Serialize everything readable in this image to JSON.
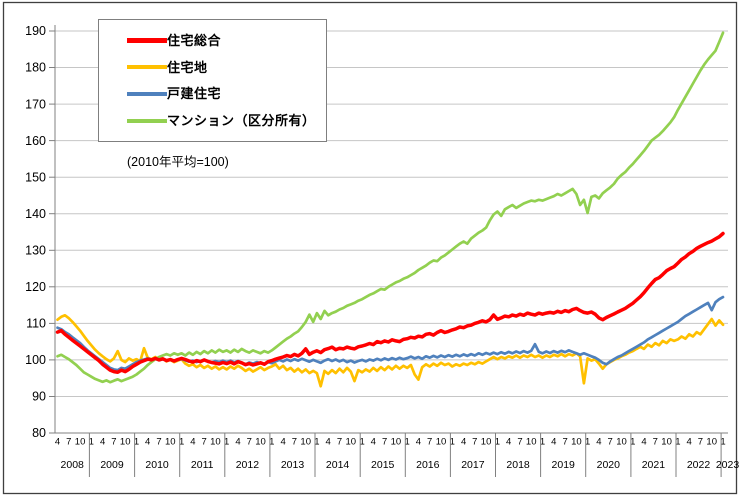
{
  "chart": {
    "note": "(2010年平均=100)",
    "border_color": "#3f3f3f",
    "grid_color": "#c6c6c6",
    "axis_color": "#808080",
    "y_axis": {
      "min": 80,
      "max": 190,
      "tick_step": 10,
      "ticks": [
        80,
        90,
        100,
        110,
        120,
        130,
        140,
        150,
        160,
        170,
        180,
        190
      ]
    },
    "x_axis": {
      "start_year": 2008,
      "start_month": 4,
      "labeled_months": [
        1,
        4,
        7,
        10
      ],
      "years": [
        "2008",
        "2009",
        "2010",
        "2011",
        "2012",
        "2013",
        "2014",
        "2015",
        "2016",
        "2017",
        "2018",
        "2019",
        "2020",
        "2021",
        "2022",
        "2023"
      ]
    }
  },
  "chart_data": {
    "type": "line",
    "title": "",
    "x_start": "2008-04",
    "x_end": "2023-01",
    "frequency": "monthly",
    "ylim": [
      80,
      190
    ],
    "grid": true,
    "legend_position": "top-left",
    "series": [
      {
        "name": "住宅総合",
        "color": "#ff0000",
        "width": 3.5,
        "values": [
          107.6,
          108.0,
          107.0,
          106.2,
          105.4,
          104.6,
          103.8,
          103.0,
          102.2,
          101.4,
          100.6,
          99.8,
          98.8,
          98.0,
          97.2,
          96.8,
          96.6,
          97.2,
          96.8,
          97.4,
          98.2,
          98.8,
          99.4,
          99.8,
          100.2,
          100.0,
          100.4,
          100.0,
          100.3,
          99.8,
          100.1,
          99.7,
          100.1,
          100.4,
          100.1,
          99.7,
          99.4,
          99.8,
          99.5,
          100.0,
          99.6,
          99.3,
          99.1,
          98.9,
          99.3,
          99.0,
          99.4,
          98.9,
          99.5,
          99.2,
          98.7,
          99.0,
          98.6,
          98.9,
          99.2,
          98.8,
          99.5,
          99.8,
          100.2,
          100.5,
          100.8,
          101.2,
          100.9,
          101.5,
          101.1,
          101.8,
          103.0,
          101.5,
          102.1,
          102.5,
          102.0,
          102.8,
          103.1,
          103.5,
          102.8,
          103.2,
          103.0,
          103.5,
          103.2,
          103.0,
          103.6,
          103.8,
          104.1,
          104.5,
          104.2,
          105.0,
          104.7,
          105.2,
          104.9,
          105.5,
          105.2,
          105.0,
          105.6,
          105.8,
          106.2,
          106.0,
          106.5,
          106.3,
          107.0,
          107.2,
          106.8,
          107.5,
          108.0,
          107.5,
          107.8,
          108.2,
          108.5,
          109.0,
          108.8,
          109.3,
          109.5,
          110.0,
          110.3,
          110.7,
          110.4,
          111.0,
          112.3,
          111.1,
          111.5,
          112.0,
          111.8,
          112.3,
          112.0,
          112.5,
          112.2,
          112.8,
          112.5,
          112.3,
          112.8,
          112.5,
          112.8,
          113.0,
          112.8,
          113.3,
          113.0,
          113.5,
          113.2,
          113.8,
          114.1,
          113.5,
          113.0,
          112.8,
          113.1,
          112.5,
          111.5,
          111.0,
          111.6,
          112.1,
          112.6,
          113.1,
          113.6,
          114.1,
          114.8,
          115.5,
          116.4,
          117.3,
          118.4,
          119.7,
          120.9,
          122.0,
          122.5,
          123.4,
          124.4,
          125.0,
          125.5,
          126.5,
          127.5,
          128.2,
          129.1,
          129.7,
          130.5,
          131.1,
          131.6,
          132.1,
          132.5,
          133.1,
          133.7,
          134.6
        ]
      },
      {
        "name": "住宅地",
        "color": "#ffc000",
        "width": 2.7,
        "values": [
          111.0,
          111.8,
          112.2,
          111.4,
          110.4,
          109.2,
          108.0,
          106.6,
          105.2,
          104.0,
          102.8,
          101.8,
          101.0,
          100.2,
          99.6,
          100.4,
          102.4,
          100.0,
          99.4,
          100.4,
          99.8,
          100.2,
          99.6,
          103.2,
          100.6,
          100.2,
          100.8,
          100.0,
          100.4,
          99.6,
          100.0,
          99.4,
          99.8,
          100.2,
          99.0,
          98.4,
          98.8,
          98.0,
          98.6,
          97.8,
          98.4,
          97.6,
          98.2,
          97.4,
          98.0,
          97.4,
          98.2,
          97.6,
          98.4,
          97.8,
          97.0,
          97.6,
          96.8,
          97.4,
          98.0,
          97.2,
          97.8,
          98.2,
          98.8,
          97.6,
          98.4,
          97.2,
          97.8,
          96.8,
          97.6,
          96.6,
          97.4,
          96.4,
          97.0,
          96.4,
          92.8,
          97.0,
          96.2,
          97.2,
          96.4,
          97.6,
          96.6,
          97.8,
          96.8,
          94.2,
          97.2,
          96.6,
          97.4,
          96.8,
          97.8,
          97.0,
          98.0,
          97.2,
          98.2,
          97.4,
          98.4,
          97.6,
          98.4,
          97.8,
          98.6,
          96.0,
          94.6,
          98.0,
          98.8,
          98.2,
          99.0,
          98.4,
          99.2,
          98.6,
          99.0,
          98.2,
          98.8,
          98.4,
          99.0,
          98.6,
          99.2,
          98.8,
          99.4,
          99.0,
          99.6,
          100.2,
          100.8,
          100.2,
          100.8,
          100.4,
          101.0,
          100.6,
          101.2,
          100.6,
          101.2,
          100.8,
          101.4,
          100.8,
          101.2,
          100.6,
          101.2,
          100.8,
          101.4,
          101.0,
          101.6,
          101.0,
          101.6,
          101.2,
          101.8,
          101.0,
          93.6,
          100.4,
          99.8,
          100.2,
          99.0,
          97.6,
          98.8,
          99.4,
          100.0,
          100.4,
          101.0,
          101.4,
          102.0,
          102.4,
          103.0,
          103.6,
          103.0,
          104.2,
          103.6,
          104.6,
          104.0,
          105.2,
          104.6,
          105.6,
          105.2,
          105.6,
          106.4,
          105.8,
          107.0,
          106.4,
          107.6,
          107.0,
          108.4,
          109.8,
          111.2,
          109.4,
          110.8,
          109.6
        ]
      },
      {
        "name": "戸建住宅",
        "color": "#4f81bd",
        "width": 2.7,
        "values": [
          108.8,
          108.4,
          107.6,
          107.0,
          106.2,
          105.4,
          104.6,
          103.6,
          102.6,
          101.8,
          101.0,
          100.2,
          99.4,
          98.6,
          97.8,
          97.4,
          97.2,
          97.8,
          97.6,
          98.2,
          98.8,
          99.4,
          99.8,
          100.1,
          100.4,
          100.0,
          100.3,
          99.9,
          100.2,
          99.8,
          100.0,
          99.7,
          100.0,
          100.2,
          99.9,
          99.5,
          99.8,
          99.4,
          99.7,
          100.0,
          99.6,
          99.3,
          99.7,
          99.4,
          99.8,
          99.4,
          99.8,
          99.3,
          99.7,
          99.2,
          98.8,
          99.3,
          99.0,
          99.4,
          99.1,
          98.8,
          99.4,
          99.1,
          99.6,
          100.0,
          99.6,
          100.1,
          99.7,
          100.2,
          99.8,
          100.3,
          99.9,
          99.5,
          100.0,
          99.6,
          99.2,
          99.8,
          100.2,
          99.7,
          100.1,
          99.6,
          100.0,
          99.4,
          99.8,
          99.3,
          99.7,
          100.0,
          99.6,
          100.1,
          99.8,
          100.3,
          99.9,
          100.4,
          100.0,
          100.5,
          100.1,
          100.6,
          100.2,
          100.5,
          100.9,
          100.4,
          100.8,
          100.3,
          101.0,
          100.6,
          101.1,
          100.7,
          101.2,
          100.8,
          101.3,
          100.9,
          101.4,
          101.0,
          101.5,
          101.1,
          101.6,
          101.2,
          101.8,
          101.4,
          101.9,
          101.5,
          102.0,
          101.6,
          102.1,
          101.7,
          102.2,
          101.8,
          102.3,
          101.9,
          102.4,
          102.0,
          102.5,
          104.3,
          102.2,
          101.8,
          102.3,
          101.9,
          102.4,
          102.0,
          102.5,
          102.1,
          102.6,
          102.2,
          101.8,
          101.4,
          101.8,
          101.4,
          101.0,
          100.6,
          100.0,
          99.2,
          98.8,
          99.6,
          100.2,
          100.8,
          101.2,
          101.8,
          102.4,
          103.0,
          103.6,
          104.2,
          104.8,
          105.6,
          106.2,
          106.8,
          107.4,
          108.0,
          108.6,
          109.2,
          109.8,
          110.4,
          111.2,
          112.0,
          112.6,
          113.2,
          113.8,
          114.4,
          115.0,
          115.6,
          113.6,
          115.8,
          116.6,
          117.2
        ]
      },
      {
        "name": "マンション（区分所有）",
        "color": "#92d050",
        "width": 2.7,
        "values": [
          101.0,
          101.4,
          100.8,
          100.2,
          99.4,
          98.6,
          97.6,
          96.6,
          96.0,
          95.4,
          94.8,
          94.4,
          94.0,
          94.4,
          93.9,
          94.3,
          94.7,
          94.2,
          94.6,
          95.0,
          95.4,
          96.0,
          96.8,
          97.6,
          98.6,
          99.4,
          100.2,
          100.8,
          101.2,
          101.6,
          101.2,
          101.8,
          101.4,
          101.8,
          101.2,
          102.0,
          101.4,
          102.2,
          101.6,
          102.4,
          101.8,
          102.6,
          102.0,
          102.8,
          102.2,
          102.6,
          102.0,
          102.8,
          102.2,
          103.0,
          102.4,
          102.0,
          102.6,
          102.2,
          101.8,
          102.4,
          102.0,
          102.6,
          103.4,
          104.2,
          105.0,
          105.8,
          106.4,
          107.2,
          107.8,
          109.0,
          110.4,
          112.4,
          110.4,
          112.8,
          111.2,
          113.4,
          112.2,
          112.8,
          113.2,
          113.8,
          114.2,
          114.8,
          115.2,
          115.6,
          116.2,
          116.6,
          117.2,
          117.8,
          118.2,
          118.8,
          119.4,
          119.2,
          120.0,
          120.6,
          121.2,
          121.6,
          122.2,
          122.6,
          123.2,
          123.8,
          124.6,
          125.2,
          125.8,
          126.6,
          127.2,
          127.0,
          128.0,
          128.6,
          129.4,
          130.2,
          131.0,
          131.8,
          132.4,
          131.8,
          133.2,
          134.0,
          134.8,
          135.4,
          136.2,
          138.2,
          139.8,
          140.6,
          139.4,
          141.2,
          141.8,
          142.4,
          141.6,
          142.2,
          142.8,
          143.2,
          143.6,
          143.4,
          143.8,
          143.6,
          144.0,
          144.4,
          144.8,
          145.4,
          145.0,
          145.6,
          146.2,
          146.8,
          145.4,
          142.4,
          143.8,
          140.2,
          144.6,
          145.0,
          144.2,
          145.6,
          146.4,
          147.2,
          148.2,
          149.6,
          150.6,
          151.4,
          152.6,
          153.6,
          154.8,
          156.0,
          157.2,
          158.6,
          160.0,
          160.8,
          161.6,
          162.6,
          163.8,
          165.0,
          166.4,
          168.4,
          170.2,
          172.0,
          173.8,
          175.6,
          177.4,
          179.2,
          180.8,
          182.2,
          183.4,
          184.6,
          187.0,
          189.5
        ]
      }
    ]
  }
}
